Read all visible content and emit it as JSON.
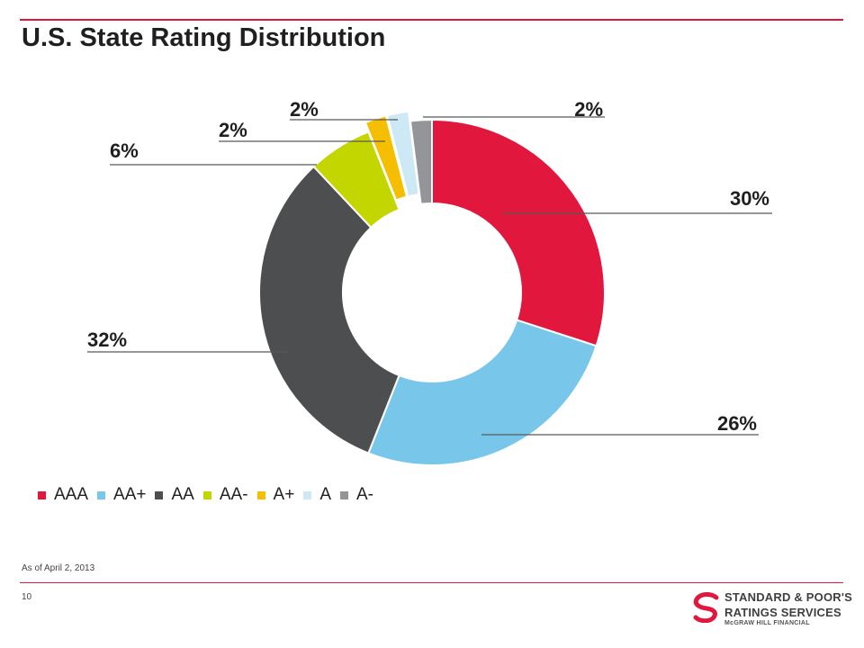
{
  "title": "U.S. State Rating Distribution",
  "note": "As of April 2, 2013",
  "page_number": "10",
  "logo": {
    "line1": "STANDARD & POOR'S",
    "line2": "RATINGS SERVICES",
    "line3": "McGRAW HILL FINANCIAL"
  },
  "colors": {
    "accent": "#e2173d"
  },
  "chart_data": {
    "type": "pie",
    "style": "donut",
    "title": "U.S. State Rating Distribution",
    "legend_position": "bottom",
    "categories": [
      "AAA",
      "AA+",
      "AA",
      "AA-",
      "A+",
      "A",
      "A-"
    ],
    "values": [
      30,
      26,
      32,
      6,
      2,
      2,
      2
    ],
    "value_labels": [
      "30%",
      "26%",
      "32%",
      "6%",
      "2%",
      "2%",
      "2%"
    ],
    "exploded": [
      "A+",
      "A"
    ],
    "colors": [
      "#e2173d",
      "#78c7ea",
      "#4d4e50",
      "#c3d600",
      "#f6be00",
      "#cce9f5",
      "#939598"
    ]
  }
}
